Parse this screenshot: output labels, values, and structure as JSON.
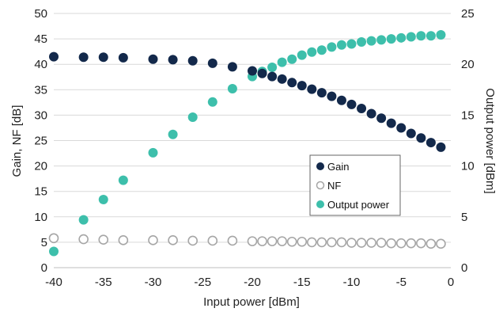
{
  "chart_data": {
    "type": "scatter",
    "xlabel": "Input power [dBm]",
    "ylabel": "Gain, NF [dB]",
    "y2label": "Output power [dBm]",
    "xlim": [
      -40,
      0
    ],
    "ylim": [
      0,
      50
    ],
    "y2lim": [
      0,
      25
    ],
    "x_ticks": [
      "-40",
      "-35",
      "-30",
      "-25",
      "-20",
      "-15",
      "-10",
      "-5",
      "0"
    ],
    "y_ticks": [
      "0",
      "5",
      "10",
      "15",
      "20",
      "25",
      "30",
      "35",
      "40",
      "45",
      "50"
    ],
    "y2_ticks": [
      "0",
      "5",
      "10",
      "15",
      "20",
      "25"
    ],
    "grid": "horizontal",
    "legend_position": "inside-right",
    "series": [
      {
        "name": "Gain",
        "axis": "left",
        "color": "#13294b",
        "marker": "filled-circle",
        "x": [
          -40,
          -37,
          -35,
          -33,
          -30,
          -28,
          -26,
          -24,
          -22,
          -20,
          -19,
          -18,
          -17,
          -16,
          -15,
          -14,
          -13,
          -12,
          -11,
          -10,
          -9,
          -8,
          -7,
          -6,
          -5,
          -4,
          -3,
          -2,
          -1
        ],
        "y": [
          41.5,
          41.4,
          41.4,
          41.3,
          41.0,
          40.9,
          40.7,
          40.2,
          39.5,
          38.7,
          38.2,
          37.6,
          37.1,
          36.4,
          35.8,
          35.1,
          34.4,
          33.7,
          32.9,
          32.1,
          31.3,
          30.3,
          29.4,
          28.4,
          27.5,
          26.4,
          25.5,
          24.6,
          23.7
        ]
      },
      {
        "name": "NF",
        "axis": "left",
        "color": "#a6a6a6",
        "marker": "hollow-circle",
        "x": [
          -40,
          -37,
          -35,
          -33,
          -30,
          -28,
          -26,
          -24,
          -22,
          -20,
          -19,
          -18,
          -17,
          -16,
          -15,
          -14,
          -13,
          -12,
          -11,
          -10,
          -9,
          -8,
          -7,
          -6,
          -5,
          -4,
          -3,
          -2,
          -1
        ],
        "y": [
          5.8,
          5.6,
          5.5,
          5.4,
          5.4,
          5.4,
          5.3,
          5.3,
          5.3,
          5.2,
          5.2,
          5.2,
          5.2,
          5.1,
          5.1,
          5.0,
          5.0,
          5.0,
          5.0,
          4.9,
          4.9,
          4.9,
          4.9,
          4.8,
          4.8,
          4.8,
          4.8,
          4.7,
          4.7
        ]
      },
      {
        "name": "Output power",
        "axis": "right",
        "color": "#3dbfab",
        "marker": "filled-circle",
        "x": [
          -40,
          -37,
          -35,
          -33,
          -30,
          -28,
          -26,
          -24,
          -22,
          -20,
          -19,
          -18,
          -17,
          -16,
          -15,
          -14,
          -13,
          -12,
          -11,
          -10,
          -9,
          -8,
          -7,
          -6,
          -5,
          -4,
          -3,
          -2,
          -1
        ],
        "y": [
          1.6,
          4.7,
          6.7,
          8.6,
          11.3,
          13.1,
          14.8,
          16.3,
          17.6,
          18.8,
          19.3,
          19.7,
          20.2,
          20.5,
          20.9,
          21.2,
          21.4,
          21.7,
          21.9,
          22.0,
          22.2,
          22.3,
          22.4,
          22.5,
          22.6,
          22.7,
          22.8,
          22.8,
          22.9
        ]
      }
    ]
  }
}
